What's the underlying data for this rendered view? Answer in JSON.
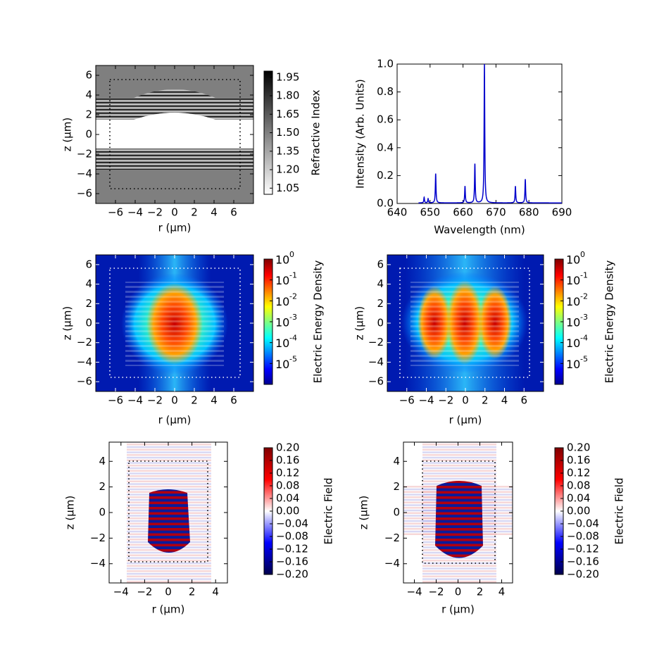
{
  "colors": {
    "spectrum_line": "#0000cc",
    "frame": "#000000",
    "background": "#ffffff",
    "gray_bg": "#7f7f7f"
  },
  "chart_data": [
    {
      "id": "refractive_index",
      "type": "heatmap",
      "title": "",
      "xlabel": "r (μm)",
      "ylabel": "z (μm)",
      "xlim": [
        -8,
        8
      ],
      "ylim": [
        -7,
        7
      ],
      "xticks": [
        "−6",
        "−4",
        "−2",
        "0",
        "2",
        "4",
        "6"
      ],
      "yticks": [
        "6",
        "4",
        "2",
        "0",
        "−2",
        "−4",
        "−6"
      ],
      "colorbar": {
        "label": "Refractive Index",
        "ticks": [
          "1.95",
          "1.80",
          "1.65",
          "1.50",
          "1.35",
          "1.20",
          "1.05"
        ],
        "range": [
          1.0,
          2.0
        ]
      },
      "dotted_box": {
        "r": [
          -6.3,
          6.3
        ],
        "z": [
          -5.3,
          5.3
        ]
      }
    },
    {
      "id": "spectrum",
      "type": "line",
      "title": "",
      "xlabel": "Wavelength (nm)",
      "ylabel": "Intensity (Arb. Units)",
      "xlim": [
        640,
        690
      ],
      "ylim": [
        0,
        1.0
      ],
      "xticks": [
        "640",
        "650",
        "660",
        "670",
        "680",
        "690"
      ],
      "yticks": [
        "1.0",
        "0.8",
        "0.6",
        "0.4",
        "0.2",
        "0.0"
      ],
      "series": [
        {
          "name": "spectrum",
          "peaks": [
            {
              "x": 648.2,
              "height": 0.04
            },
            {
              "x": 649.4,
              "height": 0.03
            },
            {
              "x": 651.7,
              "height": 0.21
            },
            {
              "x": 660.6,
              "height": 0.12
            },
            {
              "x": 663.6,
              "height": 0.28
            },
            {
              "x": 666.5,
              "height": 1.0
            },
            {
              "x": 675.9,
              "height": 0.12
            },
            {
              "x": 678.9,
              "height": 0.17
            }
          ]
        }
      ]
    },
    {
      "id": "energy_density_1",
      "type": "heatmap",
      "title": "",
      "xlabel": "r (μm)",
      "ylabel": "z (μm)",
      "xlim": [
        -8,
        8
      ],
      "ylim": [
        -7,
        7
      ],
      "xticks": [
        "−6",
        "−4",
        "−2",
        "0",
        "2",
        "4",
        "6"
      ],
      "yticks": [
        "6",
        "4",
        "2",
        "0",
        "−2",
        "−4",
        "−6"
      ],
      "colorbar": {
        "label": "Electric Energy Density",
        "ticks": [
          "10",
          "10",
          "10",
          "10",
          "10",
          "10"
        ],
        "exponents": [
          "0",
          "-1",
          "-2",
          "-3",
          "-4",
          "-5"
        ],
        "scale": "log",
        "range": [
          1e-06,
          1
        ]
      },
      "dotted_box": {
        "r": [
          -6.3,
          6.3
        ],
        "z": [
          -5.3,
          5.3
        ]
      }
    },
    {
      "id": "energy_density_2",
      "type": "heatmap",
      "title": "",
      "xlabel": "r (μm)",
      "ylabel": "z (μm)",
      "xlim": [
        -8,
        8
      ],
      "ylim": [
        -7,
        7
      ],
      "xticks": [
        "−6",
        "−4",
        "−2",
        "0",
        "2",
        "4",
        "6"
      ],
      "yticks": [
        "6",
        "4",
        "2",
        "0",
        "−2",
        "−4",
        "−6"
      ],
      "colorbar": {
        "label": "Electric Energy Density",
        "ticks": [
          "10",
          "10",
          "10",
          "10",
          "10",
          "10"
        ],
        "exponents": [
          "0",
          "-1",
          "-2",
          "-3",
          "-4",
          "-5"
        ],
        "scale": "log",
        "range": [
          1e-06,
          1
        ]
      },
      "dotted_box": {
        "r": [
          -6.3,
          6.3
        ],
        "z": [
          -5.3,
          5.3
        ]
      }
    },
    {
      "id": "electric_field_1",
      "type": "heatmap",
      "title": "",
      "xlabel": "r (μm)",
      "ylabel": "z (μm)",
      "xlim": [
        -5,
        5
      ],
      "ylim": [
        -5.5,
        5.5
      ],
      "xticks": [
        "−4",
        "−2",
        "0",
        "2",
        "4"
      ],
      "yticks": [
        "4",
        "2",
        "0",
        "−2",
        "−4"
      ],
      "colorbar": {
        "label": "Electric Field",
        "ticks": [
          "0.20",
          "0.16",
          "0.12",
          "0.08",
          "0.04",
          "0.00",
          "−0.04",
          "−0.08",
          "−0.12",
          "−0.16",
          "−0.20"
        ],
        "range": [
          -0.2,
          0.2
        ]
      },
      "dotted_box": {
        "r": [
          -3.2,
          3.0
        ],
        "z": [
          -3.9,
          3.9
        ]
      }
    },
    {
      "id": "electric_field_2",
      "type": "heatmap",
      "title": "",
      "xlabel": "r (μm)",
      "ylabel": "z (μm)",
      "xlim": [
        -5,
        5
      ],
      "ylim": [
        -5.5,
        5.5
      ],
      "xticks": [
        "−4",
        "−2",
        "0",
        "2",
        "4"
      ],
      "yticks": [
        "4",
        "2",
        "0",
        "−2",
        "−4"
      ],
      "colorbar": {
        "label": "Electric Field",
        "ticks": [
          "0.20",
          "0.16",
          "0.12",
          "0.08",
          "0.04",
          "0.00",
          "−0.04",
          "−0.08",
          "−0.12",
          "−0.16",
          "−0.20"
        ],
        "range": [
          -0.2,
          0.2
        ]
      },
      "dotted_box": {
        "r": [
          -3.6,
          3.0
        ],
        "z": [
          -4.3,
          4.3
        ]
      }
    }
  ]
}
